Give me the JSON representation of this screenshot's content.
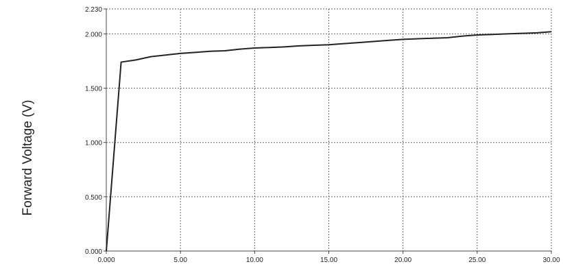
{
  "chart_data": {
    "type": "line",
    "ylabel": "Forward Voltage (V)",
    "xlabel": "",
    "xlim": [
      0,
      30
    ],
    "ylim": [
      0,
      2.23
    ],
    "x_ticks": [
      0,
      5,
      10,
      15,
      20,
      25,
      30
    ],
    "x_tick_labels": [
      "0.000",
      "5.00",
      "10.00",
      "15.00",
      "20.00",
      "25.00",
      "30.00"
    ],
    "y_ticks": [
      0,
      0.5,
      1.0,
      1.5,
      2.0,
      2.23
    ],
    "y_tick_labels": [
      "0.000",
      "0.500",
      "1.000",
      "1.500",
      "2.000",
      "2.230"
    ],
    "grid": true,
    "series": [
      {
        "x": [
          0,
          1,
          2,
          3,
          4,
          5,
          6,
          7,
          8,
          9,
          10,
          11,
          12,
          13,
          14,
          15,
          16,
          17,
          18,
          19,
          20,
          21,
          22,
          23,
          24,
          25,
          26,
          27,
          28,
          29,
          30
        ],
        "y": [
          0.0,
          1.74,
          1.76,
          1.79,
          1.805,
          1.82,
          1.83,
          1.84,
          1.845,
          1.86,
          1.87,
          1.875,
          1.88,
          1.89,
          1.895,
          1.9,
          1.91,
          1.92,
          1.93,
          1.94,
          1.95,
          1.955,
          1.96,
          1.965,
          1.98,
          1.99,
          1.995,
          2.0,
          2.005,
          2.01,
          2.02
        ],
        "color": "#222222"
      }
    ]
  }
}
